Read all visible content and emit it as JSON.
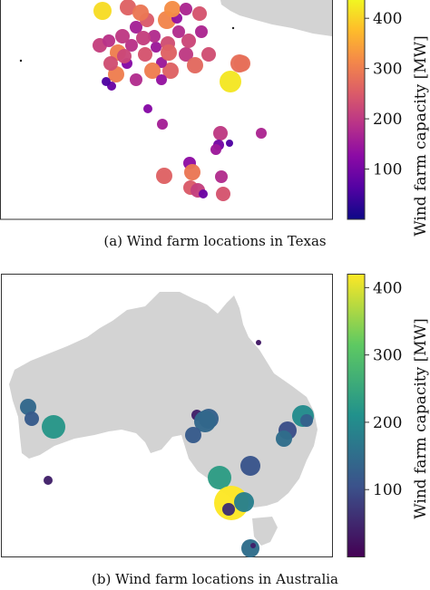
{
  "captions": {
    "texas": "(a) Wind farm locations in Texas",
    "australia": "(b) Wind farm locations in Australia"
  },
  "colorbars": {
    "texas": {
      "label": "Wind farm capacity [MW]",
      "colormap": "plasma",
      "ticks": [
        "100",
        "200",
        "300",
        "400"
      ],
      "tick_values": [
        100,
        200,
        300,
        400
      ],
      "range": [
        0,
        440
      ]
    },
    "australia": {
      "label": "Wind farm capacity [MW]",
      "colormap": "viridis",
      "ticks": [
        "100",
        "200",
        "300",
        "400"
      ],
      "tick_values": [
        100,
        200,
        300,
        400
      ],
      "range": [
        0,
        420
      ]
    }
  },
  "colors": {
    "land": "#d3d3d3",
    "frame": "#333333",
    "plasma": [
      "#0d0887",
      "#5302a3",
      "#8b0aa5",
      "#b83289",
      "#db5c68",
      "#f48849",
      "#febd2a",
      "#f0f921"
    ],
    "viridis": [
      "#440154",
      "#3b528b",
      "#21918c",
      "#5ec962",
      "#fde725"
    ]
  },
  "wind_farms": {
    "texas": [
      {
        "capacity": 410
      },
      {
        "capacity": 420
      },
      {
        "capacity": 280
      },
      {
        "capacity": 180
      },
      {
        "capacity": 260
      },
      {
        "capacity": 300
      },
      {
        "capacity": 240
      },
      {
        "capacity": 150
      },
      {
        "capacity": 120
      },
      {
        "capacity": 200
      },
      {
        "capacity": 310
      },
      {
        "capacity": 220
      },
      {
        "capacity": 160
      },
      {
        "capacity": 90
      },
      {
        "capacity": 270
      },
      {
        "capacity": 230
      },
      {
        "capacity": 180
      },
      {
        "capacity": 140
      },
      {
        "capacity": 300
      },
      {
        "capacity": 210
      },
      {
        "capacity": 250
      },
      {
        "capacity": 190
      },
      {
        "capacity": 60
      },
      {
        "capacity": 320
      },
      {
        "capacity": 170
      },
      {
        "capacity": 260
      },
      {
        "capacity": 290
      },
      {
        "capacity": 200
      },
      {
        "capacity": 230
      },
      {
        "capacity": 150
      },
      {
        "capacity": 240
      },
      {
        "capacity": 170
      },
      {
        "capacity": 210
      },
      {
        "capacity": 180
      },
      {
        "capacity": 300
      },
      {
        "capacity": 220
      },
      {
        "capacity": 140
      },
      {
        "capacity": 260
      },
      {
        "capacity": 190
      },
      {
        "capacity": 230
      },
      {
        "capacity": 120
      },
      {
        "capacity": 280
      },
      {
        "capacity": 160
      },
      {
        "capacity": 200
      },
      {
        "capacity": 100
      },
      {
        "capacity": 130
      },
      {
        "capacity": 290
      },
      {
        "capacity": 250
      },
      {
        "capacity": 210
      },
      {
        "capacity": 180
      },
      {
        "capacity": 240
      },
      {
        "capacity": 260
      },
      {
        "capacity": 150
      },
      {
        "capacity": 90
      },
      {
        "capacity": 60
      },
      {
        "capacity": 170
      }
    ],
    "australia": [
      {
        "capacity": 140
      },
      {
        "capacity": 120
      },
      {
        "capacity": 220
      },
      {
        "capacity": 40
      },
      {
        "capacity": 30
      },
      {
        "capacity": 200
      },
      {
        "capacity": 130
      },
      {
        "capacity": 100
      },
      {
        "capacity": 150
      },
      {
        "capacity": 110
      },
      {
        "capacity": 40
      },
      {
        "capacity": 130
      },
      {
        "capacity": 140
      },
      {
        "capacity": 120
      },
      {
        "capacity": 230
      },
      {
        "capacity": 420
      },
      {
        "capacity": 60
      },
      {
        "capacity": 180
      },
      {
        "capacity": 150
      },
      {
        "capacity": 40
      }
    ]
  }
}
